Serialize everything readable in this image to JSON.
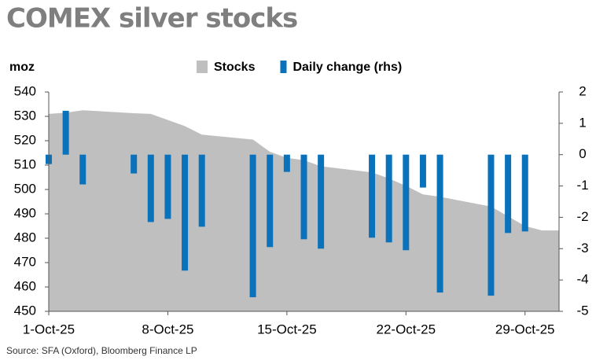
{
  "chart_data": {
    "type": "bar-area",
    "title": "COMEX silver stocks",
    "y_label": "moz",
    "source": "Source: SFA (Oxford), Bloomberg Finance LP",
    "x": [
      "2025-10-01",
      "2025-10-02",
      "2025-10-03",
      "2025-10-06",
      "2025-10-07",
      "2025-10-08",
      "2025-10-09",
      "2025-10-10",
      "2025-10-13",
      "2025-10-14",
      "2025-10-15",
      "2025-10-16",
      "2025-10-17",
      "2025-10-20",
      "2025-10-21",
      "2025-10-22",
      "2025-10-23",
      "2025-10-24",
      "2025-10-27",
      "2025-10-28",
      "2025-10-29",
      "2025-10-30",
      "2025-10-31"
    ],
    "series": [
      {
        "name": "Stocks",
        "type": "area",
        "color": "#bfbfbf",
        "values": [
          531,
          531.5,
          532.5,
          531.3,
          531,
          528.5,
          526,
          522.5,
          520.5,
          515.5,
          513,
          512,
          509.5,
          507,
          504.5,
          501.5,
          498,
          497,
          493,
          489,
          485,
          483.2,
          483.2
        ]
      },
      {
        "name": "Daily change (rhs)",
        "type": "bar",
        "axis": "y2",
        "color": "#0a72ba",
        "values": [
          -0.3,
          1.4,
          -0.95,
          -0.6,
          -2.15,
          -2.05,
          -3.7,
          -2.3,
          -4.55,
          -2.95,
          -0.55,
          -2.7,
          -3.0,
          -2.65,
          -2.8,
          -3.05,
          -1.05,
          -4.4,
          -4.5,
          -2.5,
          -2.45,
          null,
          null
        ]
      }
    ],
    "xlim": [
      "2025-10-01",
      "2025-10-31"
    ],
    "xticks": [
      {
        "value": "2025-10-01",
        "label": "1-Oct-25"
      },
      {
        "value": "2025-10-08",
        "label": "8-Oct-25"
      },
      {
        "value": "2025-10-15",
        "label": "15-Oct-25"
      },
      {
        "value": "2025-10-22",
        "label": "22-Oct-25"
      },
      {
        "value": "2025-10-29",
        "label": "29-Oct-25"
      }
    ],
    "ylim": [
      450,
      540
    ],
    "yticks": [
      450,
      460,
      470,
      480,
      490,
      500,
      510,
      520,
      530,
      540
    ],
    "y2lim": [
      -5,
      2
    ],
    "y2ticks": [
      2,
      1,
      0,
      -1,
      -2,
      -3,
      -4,
      -5
    ],
    "grid": false,
    "legend": "top"
  }
}
